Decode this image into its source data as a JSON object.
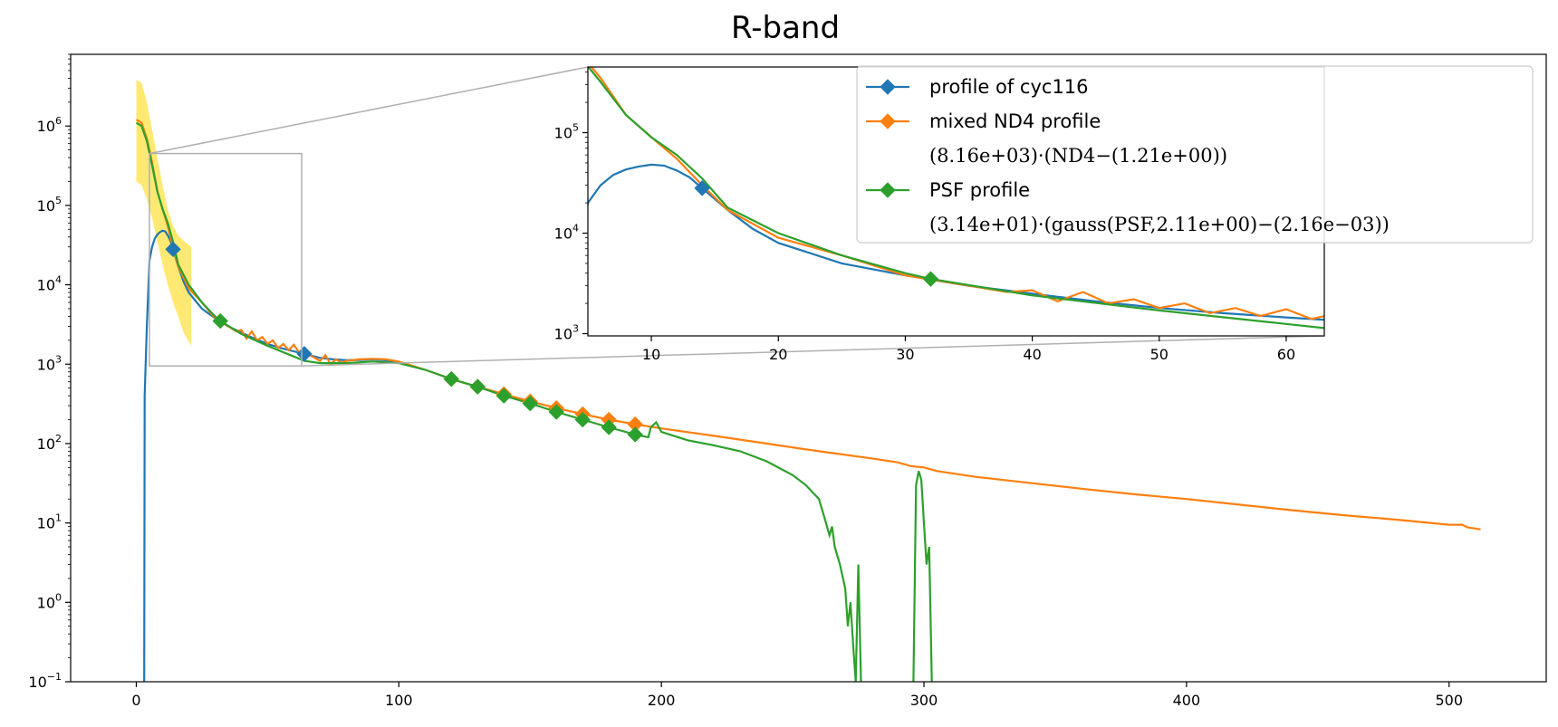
{
  "chart_data": {
    "type": "line",
    "title": "R-band",
    "xlabel": "",
    "ylabel": "",
    "yscale": "log",
    "xlim": [
      -25,
      537
    ],
    "ylim": [
      0.1,
      8000000
    ],
    "x_ticks": [
      0,
      100,
      200,
      300,
      400,
      500
    ],
    "y_ticks": [
      {
        "value": 0.1,
        "base": "10",
        "exp": "−1"
      },
      {
        "value": 1,
        "base": "10",
        "exp": "0"
      },
      {
        "value": 10,
        "base": "10",
        "exp": "1"
      },
      {
        "value": 100,
        "base": "10",
        "exp": "2"
      },
      {
        "value": 1000,
        "base": "10",
        "exp": "3"
      },
      {
        "value": 10000,
        "base": "10",
        "exp": "4"
      },
      {
        "value": 100000,
        "base": "10",
        "exp": "5"
      },
      {
        "value": 1000000,
        "base": "10",
        "exp": "6"
      }
    ],
    "grid": false,
    "legend_position": "top-right",
    "colors": {
      "blue": "#1f77b4",
      "orange": "#ff7f0e",
      "green": "#2ca02c",
      "band": "#ffd700"
    },
    "series": [
      {
        "name": "profile of cyc116",
        "color": "#1f77b4",
        "marker_x": [
          14,
          64
        ],
        "points": [
          [
            3,
            0.1
          ],
          [
            3.2,
            400
          ],
          [
            4,
            3000
          ],
          [
            5,
            20000
          ],
          [
            6,
            30000
          ],
          [
            7,
            38000
          ],
          [
            8,
            43000
          ],
          [
            9,
            46000
          ],
          [
            10,
            48000
          ],
          [
            11,
            47000
          ],
          [
            12,
            42000
          ],
          [
            13,
            36000
          ],
          [
            14,
            28000
          ],
          [
            16,
            17000
          ],
          [
            18,
            11000
          ],
          [
            20,
            8000
          ],
          [
            25,
            5000
          ],
          [
            30,
            3800
          ],
          [
            35,
            3000
          ],
          [
            40,
            2500
          ],
          [
            45,
            2100
          ],
          [
            50,
            1800
          ],
          [
            55,
            1600
          ],
          [
            60,
            1450
          ],
          [
            64,
            1350
          ],
          [
            70,
            1200
          ],
          [
            75,
            1150
          ],
          [
            80,
            1120
          ],
          [
            85,
            1130
          ],
          [
            90,
            1150
          ],
          [
            95,
            1120
          ],
          [
            100,
            1050
          ]
        ]
      },
      {
        "name": "mixed ND4 profile",
        "formula": "(8.16e+03)·(ND4−(1.21e+00))",
        "color": "#ff7f0e",
        "marker_x": [
          120,
          130,
          140,
          150,
          160,
          170,
          180,
          190
        ],
        "points": [
          [
            0,
            1200000
          ],
          [
            2,
            1100000
          ],
          [
            4,
            700000
          ],
          [
            6,
            350000
          ],
          [
            8,
            150000
          ],
          [
            10,
            90000
          ],
          [
            12,
            55000
          ],
          [
            14,
            30000
          ],
          [
            16,
            17000
          ],
          [
            20,
            9000
          ],
          [
            25,
            6000
          ],
          [
            30,
            3800
          ],
          [
            35,
            3000
          ],
          [
            38,
            2600
          ],
          [
            40,
            2700
          ],
          [
            42,
            2100
          ],
          [
            44,
            2600
          ],
          [
            46,
            2000
          ],
          [
            48,
            2200
          ],
          [
            50,
            1800
          ],
          [
            52,
            2000
          ],
          [
            54,
            1600
          ],
          [
            56,
            1800
          ],
          [
            58,
            1500
          ],
          [
            60,
            1750
          ],
          [
            62,
            1400
          ],
          [
            64,
            1600
          ],
          [
            66,
            1300
          ],
          [
            68,
            1200
          ],
          [
            70,
            1100
          ],
          [
            72,
            1300
          ],
          [
            74,
            1000
          ],
          [
            76,
            1150
          ],
          [
            78,
            1050
          ],
          [
            80,
            1100
          ],
          [
            85,
            1150
          ],
          [
            90,
            1170
          ],
          [
            95,
            1150
          ],
          [
            100,
            1080
          ],
          [
            110,
            850
          ],
          [
            120,
            650
          ],
          [
            130,
            520
          ],
          [
            140,
            420
          ],
          [
            150,
            340
          ],
          [
            160,
            280
          ],
          [
            170,
            235
          ],
          [
            180,
            200
          ],
          [
            190,
            175
          ],
          [
            200,
            155
          ],
          [
            220,
            125
          ],
          [
            240,
            100
          ],
          [
            260,
            80
          ],
          [
            280,
            65
          ],
          [
            290,
            58
          ],
          [
            295,
            52
          ],
          [
            300,
            50
          ],
          [
            305,
            45
          ],
          [
            320,
            38
          ],
          [
            340,
            32
          ],
          [
            360,
            27
          ],
          [
            380,
            23
          ],
          [
            400,
            20
          ],
          [
            420,
            17
          ],
          [
            440,
            14.5
          ],
          [
            460,
            12.5
          ],
          [
            480,
            11
          ],
          [
            500,
            9.5
          ],
          [
            505,
            9.5
          ],
          [
            507,
            8.8
          ],
          [
            512,
            8.3
          ]
        ]
      },
      {
        "name": "PSF profile",
        "formula": "(3.14e+01)·(gauss(PSF,2.11e+00)−(2.16e−03))",
        "color": "#2ca02c",
        "marker_x": [
          32,
          120,
          130,
          140,
          150,
          160,
          170,
          180,
          190
        ],
        "points": [
          [
            0,
            1100000
          ],
          [
            2,
            1000000
          ],
          [
            4,
            650000
          ],
          [
            6,
            320000
          ],
          [
            8,
            150000
          ],
          [
            10,
            90000
          ],
          [
            12,
            60000
          ],
          [
            14,
            35000
          ],
          [
            16,
            18000
          ],
          [
            20,
            10000
          ],
          [
            25,
            6000
          ],
          [
            30,
            4000
          ],
          [
            32,
            3500
          ],
          [
            40,
            2400
          ],
          [
            50,
            1700
          ],
          [
            60,
            1250
          ],
          [
            64,
            1100
          ],
          [
            70,
            1030
          ],
          [
            80,
            1030
          ],
          [
            90,
            1080
          ],
          [
            100,
            1030
          ],
          [
            110,
            850
          ],
          [
            120,
            650
          ],
          [
            130,
            520
          ],
          [
            140,
            400
          ],
          [
            150,
            320
          ],
          [
            160,
            250
          ],
          [
            170,
            200
          ],
          [
            180,
            160
          ],
          [
            190,
            130
          ],
          [
            195,
            120
          ],
          [
            196,
            160
          ],
          [
            198,
            185
          ],
          [
            200,
            140
          ],
          [
            210,
            110
          ],
          [
            220,
            95
          ],
          [
            230,
            80
          ],
          [
            240,
            60
          ],
          [
            250,
            40
          ],
          [
            255,
            30
          ],
          [
            260,
            20
          ],
          [
            262,
            12
          ],
          [
            264,
            7
          ],
          [
            265,
            9
          ],
          [
            266,
            5
          ],
          [
            268,
            3
          ],
          [
            270,
            1.5
          ],
          [
            271,
            0.5
          ],
          [
            272,
            1
          ],
          [
            273,
            0.3
          ],
          [
            274,
            0.1
          ]
        ],
        "segments": [
          [
            [
              274,
              0.1
            ],
            [
              275,
              3
            ],
            [
              276,
              0.1
            ]
          ],
          [
            [
              296,
              0.1
            ],
            [
              297,
              30
            ],
            [
              298,
              45
            ],
            [
              299,
              35
            ],
            [
              300,
              10
            ],
            [
              301,
              3
            ],
            [
              302,
              5
            ],
            [
              303,
              0.1
            ]
          ]
        ]
      }
    ],
    "uncertainty_band": {
      "color": "#ffd700",
      "upper": [
        [
          0,
          3800000
        ],
        [
          2,
          3500000
        ],
        [
          4,
          2000000
        ],
        [
          6,
          900000
        ],
        [
          8,
          400000
        ],
        [
          10,
          180000
        ],
        [
          12,
          90000
        ],
        [
          14,
          55000
        ],
        [
          16,
          42000
        ],
        [
          18,
          36000
        ],
        [
          21,
          30000
        ]
      ],
      "lower": [
        [
          0,
          200000
        ],
        [
          2,
          180000
        ],
        [
          4,
          120000
        ],
        [
          6,
          70000
        ],
        [
          8,
          35000
        ],
        [
          10,
          18000
        ],
        [
          12,
          10000
        ],
        [
          14,
          6000
        ],
        [
          16,
          4000
        ],
        [
          18,
          2500
        ],
        [
          21,
          1700
        ]
      ]
    },
    "inset": {
      "xlim": [
        5,
        63
      ],
      "ylim": [
        950,
        450000
      ],
      "x_ticks": [
        10,
        20,
        30,
        40,
        50,
        60
      ],
      "y_ticks": [
        {
          "value": 1000,
          "base": "10",
          "exp": "3"
        },
        {
          "value": 10000,
          "base": "10",
          "exp": "4"
        },
        {
          "value": 100000,
          "base": "10",
          "exp": "5"
        }
      ]
    }
  }
}
